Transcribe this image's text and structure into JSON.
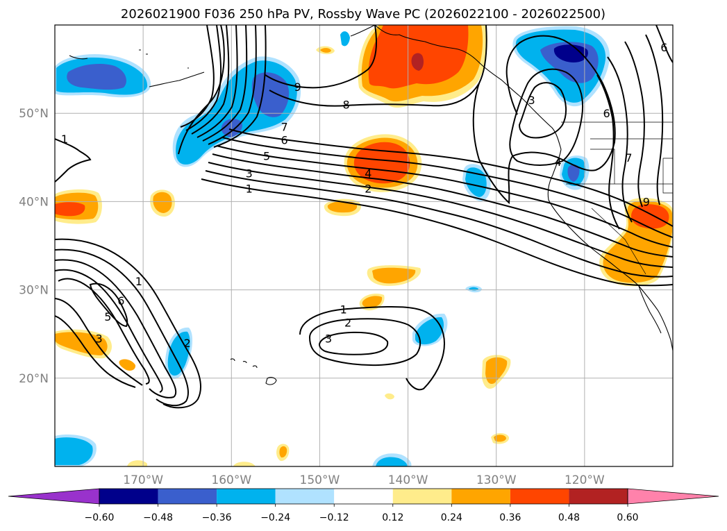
{
  "chart_data": {
    "type": "map",
    "title": "2026021900 F036 250 hPa PV, Rossby Wave PC (2026022100 - 2026022500)",
    "projection": "equirectangular",
    "lon_range": [
      -180,
      -110
    ],
    "lat_range": [
      10,
      60
    ],
    "x_ticks": [
      {
        "lon": -170,
        "label": "170°W"
      },
      {
        "lon": -160,
        "label": "160°W"
      },
      {
        "lon": -150,
        "label": "150°W"
      },
      {
        "lon": -140,
        "label": "140°W"
      },
      {
        "lon": -130,
        "label": "130°W"
      },
      {
        "lon": -120,
        "label": "120°W"
      }
    ],
    "y_ticks": [
      {
        "lat": 20,
        "label": "20°N"
      },
      {
        "lat": 30,
        "label": "30°N"
      },
      {
        "lat": 40,
        "label": "40°N"
      },
      {
        "lat": 50,
        "label": "50°N"
      }
    ],
    "grid": true,
    "colorbar": {
      "orientation": "horizontal",
      "extend": "both",
      "levels": [
        -0.6,
        -0.48,
        -0.36,
        -0.24,
        -0.12,
        0.12,
        0.24,
        0.36,
        0.48,
        0.6
      ],
      "tick_labels": [
        "−0.60",
        "−0.48",
        "−0.36",
        "−0.24",
        "−0.12",
        "0.12",
        "0.24",
        "0.36",
        "0.48",
        "0.60"
      ],
      "colors": [
        "#9932CC",
        "#00008B",
        "#3A5FCD",
        "#00B2EE",
        "#B0E2FF",
        "#FFFFFF",
        "#FFEC8B",
        "#FFA500",
        "#FF4500",
        "#B22222",
        "#FF82AB"
      ]
    },
    "shaded_anomalies": [
      {
        "lon": -137.5,
        "lat": 55.5,
        "level": 0.48,
        "sign": "positive"
      },
      {
        "lon": -144,
        "lat": 43.5,
        "level": 0.36,
        "sign": "positive"
      },
      {
        "lon": -113,
        "lat": 39,
        "level": 0.36,
        "sign": "positive"
      },
      {
        "lon": -115,
        "lat": 32.5,
        "level": 0.24,
        "sign": "positive"
      },
      {
        "lon": -178,
        "lat": 39,
        "level": 0.36,
        "sign": "positive"
      },
      {
        "lon": -168,
        "lat": 40,
        "level": 0.24,
        "sign": "positive"
      },
      {
        "lon": -149,
        "lat": 39.5,
        "level": 0.24,
        "sign": "positive"
      },
      {
        "lon": -142,
        "lat": 31.5,
        "level": 0.24,
        "sign": "positive"
      },
      {
        "lon": -176,
        "lat": 24.5,
        "level": 0.24,
        "sign": "positive"
      },
      {
        "lon": -129.5,
        "lat": 21,
        "level": 0.24,
        "sign": "positive"
      },
      {
        "lon": -145.5,
        "lat": 28.5,
        "level": 0.24,
        "sign": "positive"
      },
      {
        "lon": -121,
        "lat": 56,
        "level": -0.48,
        "sign": "negative"
      },
      {
        "lon": -175,
        "lat": 53.5,
        "level": -0.36,
        "sign": "negative"
      },
      {
        "lon": -156.5,
        "lat": 50,
        "level": -0.36,
        "sign": "negative"
      },
      {
        "lon": -161,
        "lat": 46,
        "level": -0.24,
        "sign": "negative"
      },
      {
        "lon": -121,
        "lat": 43.5,
        "level": -0.36,
        "sign": "negative"
      },
      {
        "lon": -132,
        "lat": 42.5,
        "level": -0.24,
        "sign": "negative"
      },
      {
        "lon": -165.5,
        "lat": 23.5,
        "level": -0.24,
        "sign": "negative"
      },
      {
        "lon": -136,
        "lat": 25.5,
        "level": -0.24,
        "sign": "negative"
      },
      {
        "lon": -177.5,
        "lat": 11.5,
        "level": -0.24,
        "sign": "negative"
      }
    ],
    "pv_contour_labels": [
      {
        "lon": -178.9,
        "lat": 47.1,
        "label": "1"
      },
      {
        "lon": -154,
        "lat": 48.5,
        "label": "7"
      },
      {
        "lon": -154,
        "lat": 47,
        "label": "6"
      },
      {
        "lon": -156,
        "lat": 45.2,
        "label": "5"
      },
      {
        "lon": -158,
        "lat": 43.2,
        "label": "3"
      },
      {
        "lon": -158,
        "lat": 41.5,
        "label": "1"
      },
      {
        "lon": -152.5,
        "lat": 53,
        "label": "9"
      },
      {
        "lon": -147,
        "lat": 51,
        "label": "8"
      },
      {
        "lon": -144.5,
        "lat": 43.2,
        "label": "4"
      },
      {
        "lon": -144.5,
        "lat": 41.5,
        "label": "2"
      },
      {
        "lon": -170.5,
        "lat": 31,
        "label": "1"
      },
      {
        "lon": -172.5,
        "lat": 28.8,
        "label": "6"
      },
      {
        "lon": -174,
        "lat": 27,
        "label": "5"
      },
      {
        "lon": -175,
        "lat": 24.5,
        "label": "3"
      },
      {
        "lon": -147.3,
        "lat": 27.8,
        "label": "1"
      },
      {
        "lon": -146.8,
        "lat": 26.3,
        "label": "2"
      },
      {
        "lon": -149,
        "lat": 24.5,
        "label": "3"
      },
      {
        "lon": -126,
        "lat": 51.5,
        "label": "3"
      },
      {
        "lon": -123,
        "lat": 44.5,
        "label": "4"
      },
      {
        "lon": -117.5,
        "lat": 50,
        "label": "6"
      },
      {
        "lon": -115,
        "lat": 45,
        "label": "7"
      },
      {
        "lon": -111,
        "lat": 57.5,
        "label": "6"
      },
      {
        "lon": -113,
        "lat": 40,
        "label": "9"
      },
      {
        "lon": -165,
        "lat": 24,
        "label": "2"
      }
    ]
  }
}
